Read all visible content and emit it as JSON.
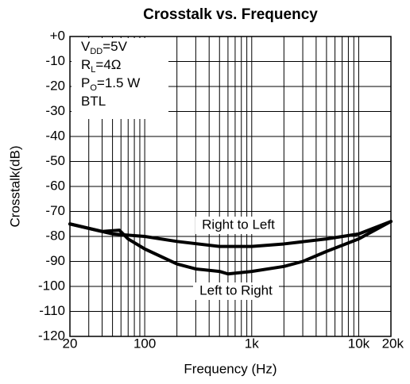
{
  "chart_data": {
    "type": "line",
    "title": "Crosstalk vs. Frequency",
    "xlabel": "Frequency (Hz)",
    "ylabel": "Crosstalk(dB)",
    "xscale": "log",
    "grid": true,
    "xlim": [
      20,
      20000
    ],
    "ylim": [
      -120,
      0
    ],
    "xticks": [
      20,
      100,
      {
        "value": 1000,
        "label": "1k"
      },
      {
        "value": 10000,
        "label": "10k"
      },
      {
        "value": 20000,
        "label": "20k"
      }
    ],
    "xminorticks": [
      30,
      40,
      50,
      60,
      70,
      80,
      90,
      200,
      300,
      400,
      500,
      600,
      700,
      800,
      900,
      2000,
      3000,
      4000,
      5000,
      6000,
      7000,
      8000,
      9000
    ],
    "yticks": [
      {
        "value": 0,
        "label": "+0"
      },
      -10,
      -20,
      -30,
      -40,
      -50,
      -60,
      -70,
      -80,
      -90,
      -100,
      -110,
      -120
    ],
    "annotations": [
      [
        "V",
        "DD",
        "=5V"
      ],
      [
        "R",
        "L",
        "=4Ω"
      ],
      [
        "P",
        "O",
        "=1.5 W"
      ],
      [
        "BTL"
      ]
    ],
    "series": [
      {
        "name": "Right to Left",
        "color": "#000000",
        "x": [
          20,
          50,
          100,
          200,
          500,
          1000,
          2000,
          5000,
          10000,
          20000
        ],
        "values": [
          -75,
          -79,
          -80,
          -82,
          -84,
          -84,
          -83,
          -81,
          -79,
          -74
        ]
      },
      {
        "name": "Left to Right",
        "color": "#000000",
        "x": [
          20,
          40,
          58,
          70,
          100,
          200,
          300,
          500,
          600,
          1000,
          2000,
          3000,
          5000,
          10000,
          20000
        ],
        "values": [
          -75,
          -78,
          -77.5,
          -81,
          -85,
          -91,
          -93,
          -94,
          -95,
          -94,
          -92,
          -90,
          -86,
          -81,
          -74
        ]
      }
    ]
  }
}
